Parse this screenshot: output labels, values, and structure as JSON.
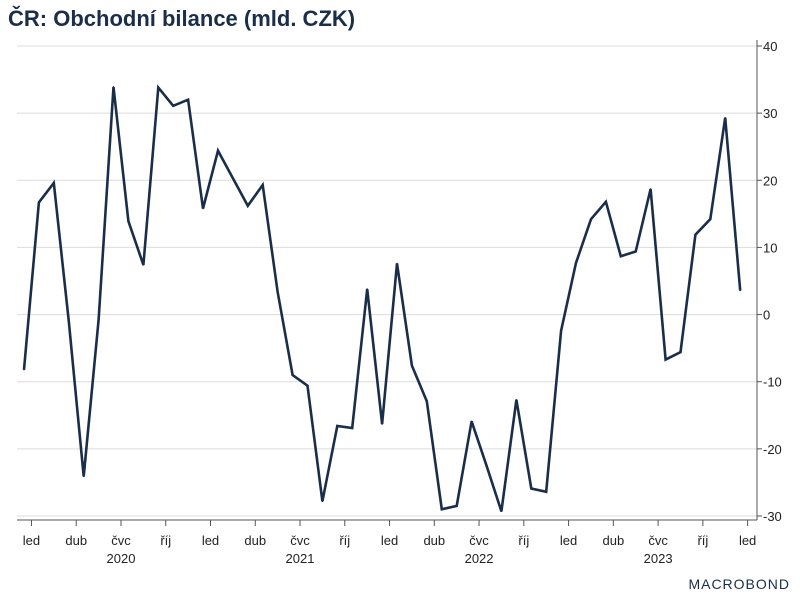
{
  "chart_data": {
    "type": "line",
    "title": "ČR: Obchodní bilance (mld. CZK)",
    "xlabel": "",
    "ylabel": "",
    "ylim": [
      -30,
      40
    ],
    "yticks": [
      40,
      30,
      20,
      10,
      0,
      -10,
      -20,
      -30
    ],
    "ytick_labels": [
      "40",
      "30",
      "20",
      "10",
      "0",
      "-10",
      "-20",
      "-30"
    ],
    "y_axis_position": "right",
    "grid": true,
    "legend": "none",
    "x_tick_labels": [
      {
        "month_index": 0,
        "label": "led",
        "year": ""
      },
      {
        "month_index": 3,
        "label": "dub",
        "year": ""
      },
      {
        "month_index": 6,
        "label": "čvc",
        "year": "2020"
      },
      {
        "month_index": 9,
        "label": "říj",
        "year": ""
      },
      {
        "month_index": 12,
        "label": "led",
        "year": ""
      },
      {
        "month_index": 15,
        "label": "dub",
        "year": ""
      },
      {
        "month_index": 18,
        "label": "čvc",
        "year": "2021"
      },
      {
        "month_index": 21,
        "label": "říj",
        "year": ""
      },
      {
        "month_index": 24,
        "label": "led",
        "year": ""
      },
      {
        "month_index": 27,
        "label": "dub",
        "year": ""
      },
      {
        "month_index": 30,
        "label": "čvc",
        "year": "2022"
      },
      {
        "month_index": 33,
        "label": "říj",
        "year": ""
      },
      {
        "month_index": 36,
        "label": "led",
        "year": ""
      },
      {
        "month_index": 39,
        "label": "dub",
        "year": ""
      },
      {
        "month_index": 42,
        "label": "čvc",
        "year": "2023"
      },
      {
        "month_index": 45,
        "label": "říj",
        "year": ""
      },
      {
        "month_index": 48,
        "label": "led",
        "year": ""
      }
    ],
    "series": [
      {
        "color": "#1a2e4a",
        "x": [
          "2019-12",
          "2020-01",
          "2020-02",
          "2020-03",
          "2020-04",
          "2020-05",
          "2020-06",
          "2020-07",
          "2020-08",
          "2020-09",
          "2020-10",
          "2020-11",
          "2020-12",
          "2021-01",
          "2021-02",
          "2021-03",
          "2021-04",
          "2021-05",
          "2021-06",
          "2021-07",
          "2021-08",
          "2021-09",
          "2021-10",
          "2021-11",
          "2021-12",
          "2022-01",
          "2022-02",
          "2022-03",
          "2022-04",
          "2022-05",
          "2022-06",
          "2022-07",
          "2022-08",
          "2022-09",
          "2022-10",
          "2022-11",
          "2022-12",
          "2023-01",
          "2023-02",
          "2023-03",
          "2023-04",
          "2023-05",
          "2023-06",
          "2023-07",
          "2023-08",
          "2023-09",
          "2023-10",
          "2023-11",
          "2023-12"
        ],
        "values": [
          -8.2,
          16.7,
          19.6,
          -1.0,
          -24.1,
          -0.8,
          33.9,
          13.9,
          7.4,
          33.8,
          31.1,
          32.0,
          15.8,
          24.4,
          20.3,
          16.2,
          19.3,
          3.4,
          -9.0,
          -10.6,
          -27.8,
          -16.6,
          -16.9,
          3.8,
          -16.3,
          7.6,
          -7.6,
          -12.9,
          -29.0,
          -28.5,
          -15.9,
          -22.5,
          -29.3,
          -12.7,
          -25.9,
          -26.4,
          -2.4,
          7.7,
          14.2,
          16.8,
          8.7,
          9.4,
          18.7,
          -6.7,
          -5.6,
          11.9,
          14.2,
          29.3,
          3.6
        ]
      }
    ]
  },
  "logo": {
    "text": "MACROBOND"
  }
}
